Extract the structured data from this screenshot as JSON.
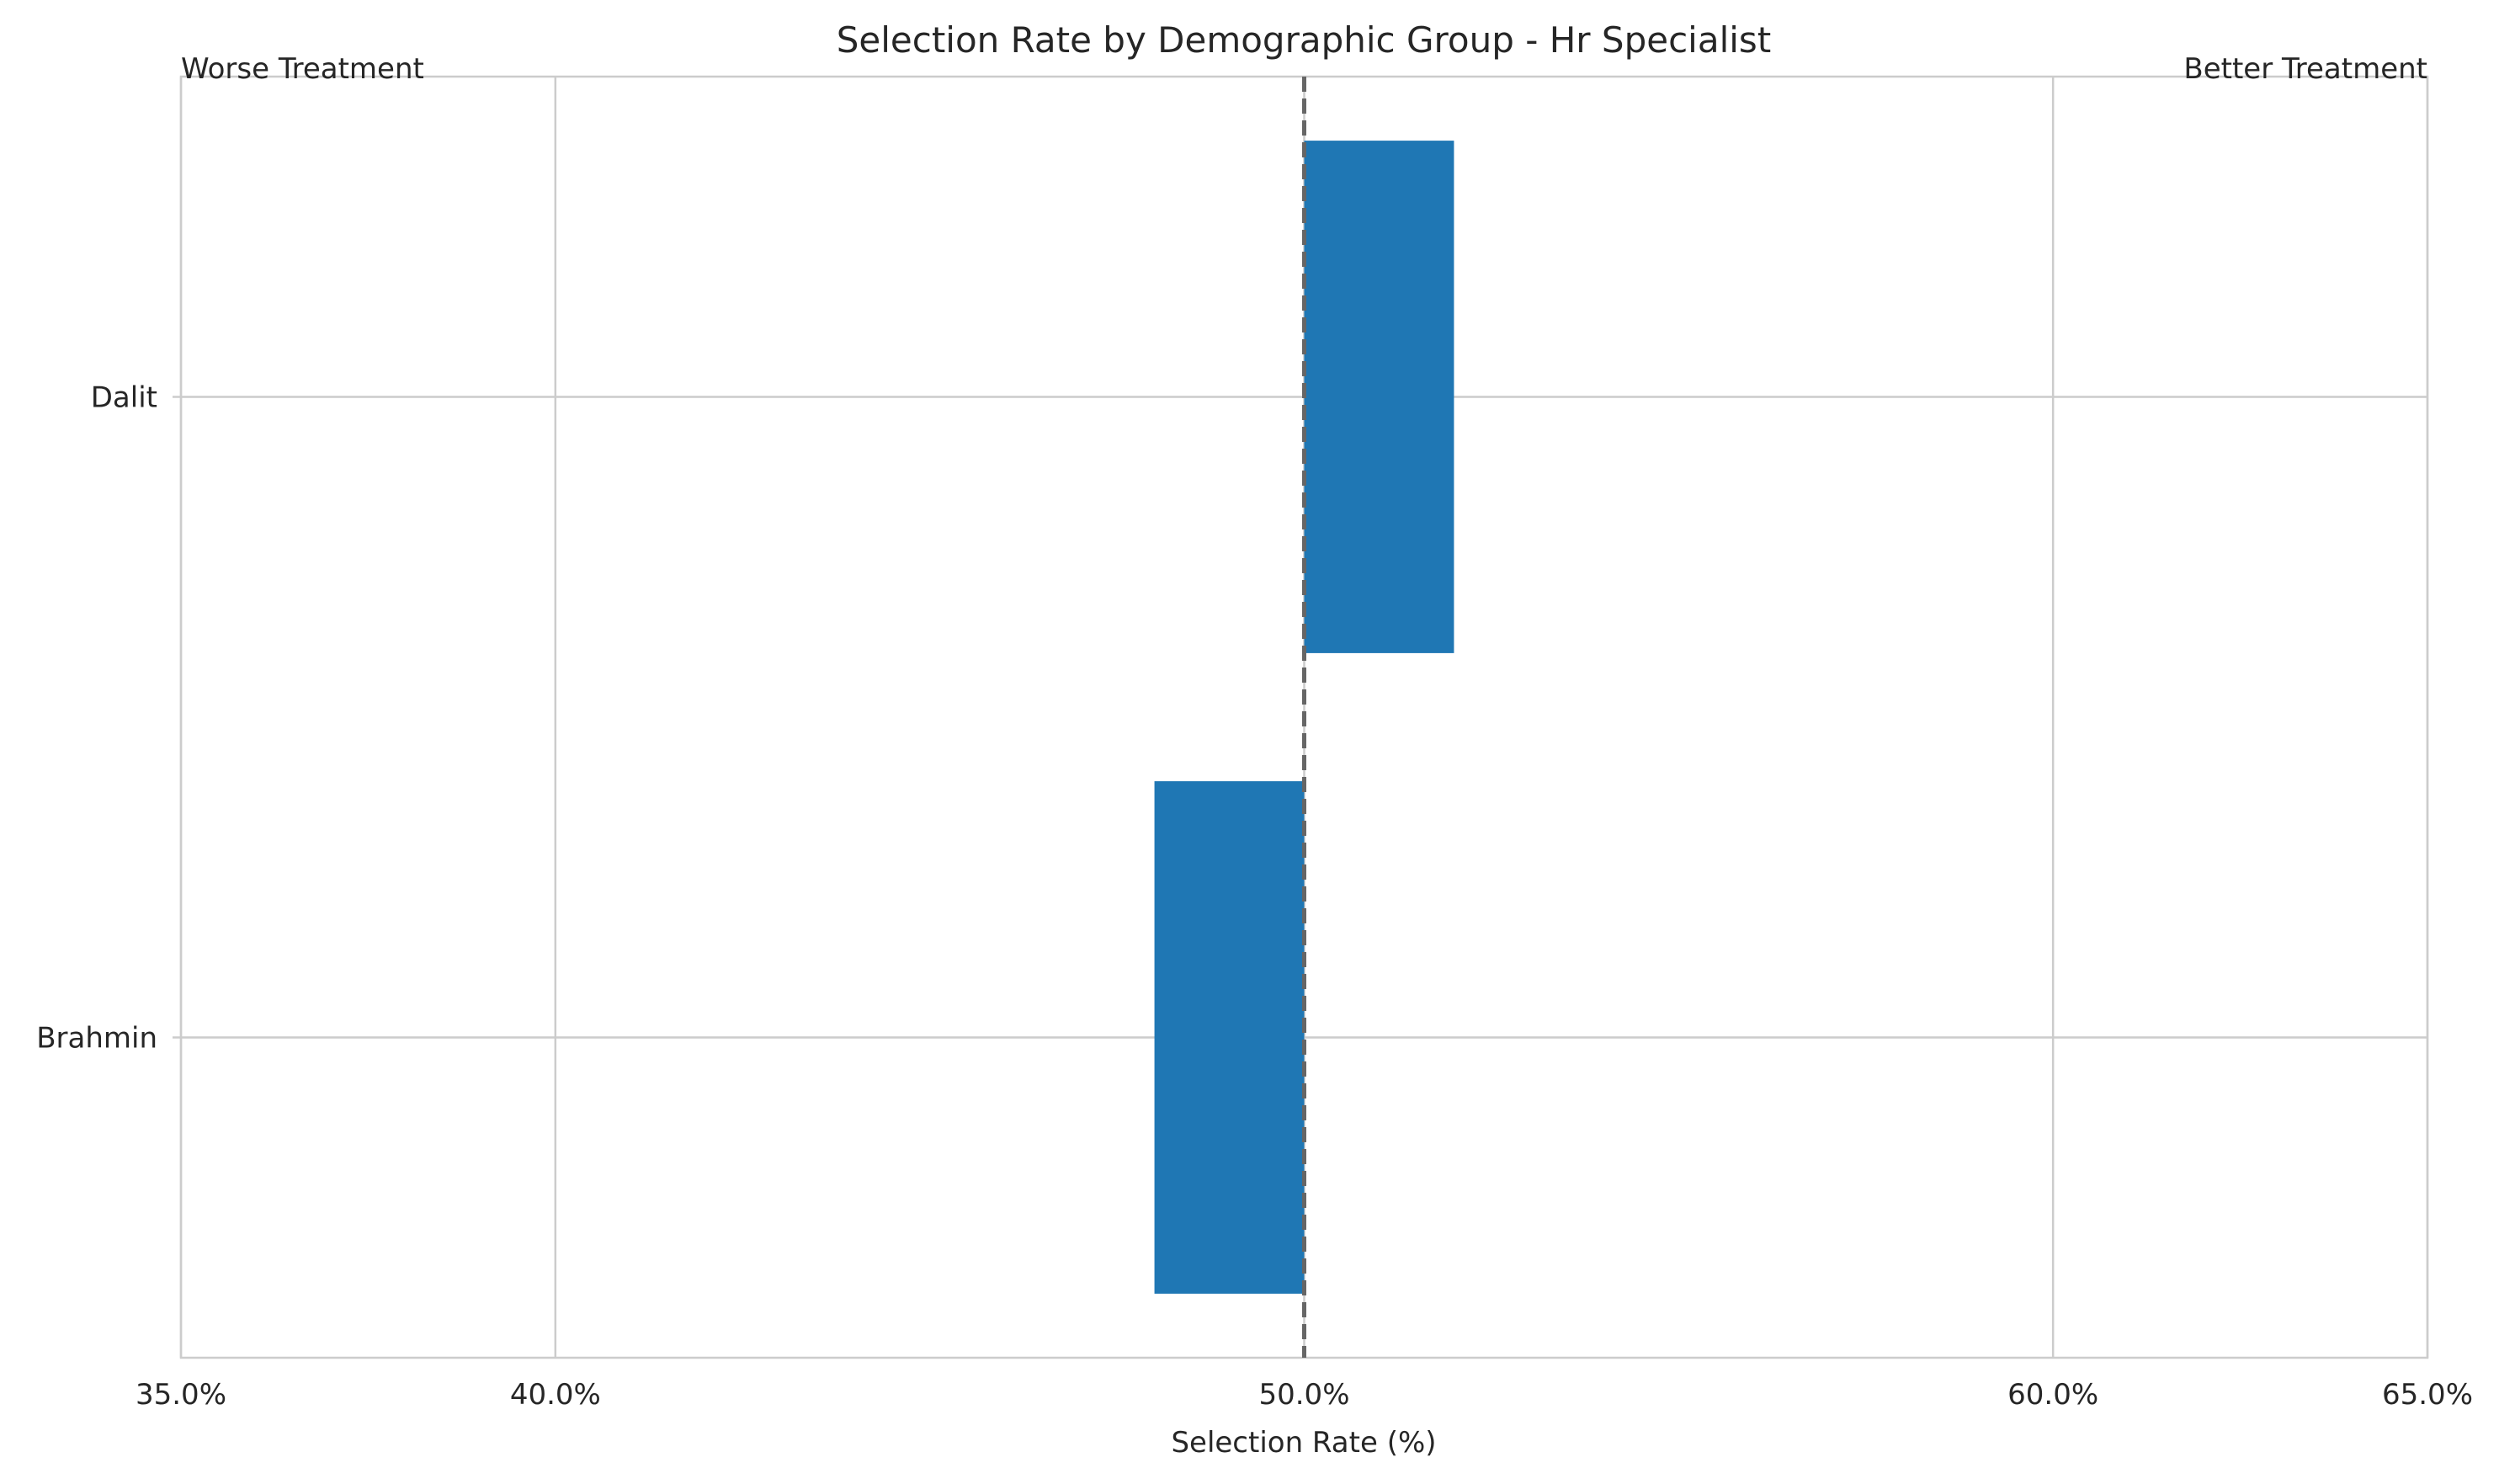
{
  "chart_data": {
    "type": "bar",
    "orientation": "horizontal",
    "title": "Selection Rate by Demographic Group - Hr Specialist",
    "xlabel": "Selection Rate (%)",
    "ylabel": "",
    "categories": [
      "Dalit",
      "Brahmin"
    ],
    "values": [
      52.0,
      48.0
    ],
    "reference_line": 50.0,
    "xlim": [
      35.0,
      65.0
    ],
    "xticks": [
      35.0,
      40.0,
      50.0,
      60.0,
      65.0
    ],
    "xtick_labels": [
      "35.0%",
      "40.0%",
      "50.0%",
      "60.0%",
      "65.0%"
    ],
    "annotations": {
      "left": "Worse Treatment",
      "right": "Better Treatment"
    },
    "grid": true,
    "colors": {
      "bar": "#1f77b4",
      "reference_line": "#666666",
      "grid": "#cccccc"
    }
  }
}
